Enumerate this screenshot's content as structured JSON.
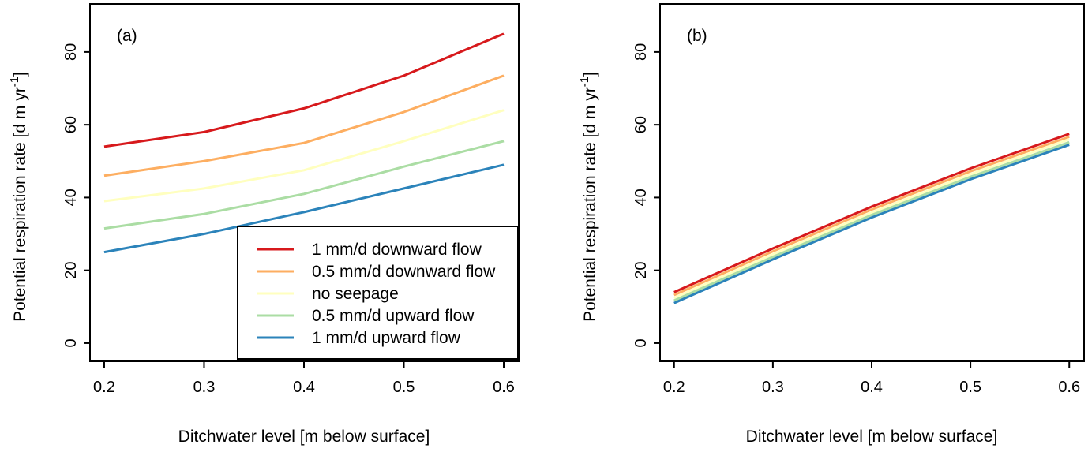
{
  "figure": {
    "background": "#ffffff",
    "axis_color": "#000000",
    "text_color": "#000000"
  },
  "chart_data": [
    {
      "type": "line",
      "panel_label": "(a)",
      "xlabel": "Ditchwater level [m below surface]",
      "ylabel": "Potential respiration rate [d m yr-1]",
      "ylabel_parts": {
        "pre": "Potential respiration rate [d m yr",
        "sup": "-1",
        "post": "]"
      },
      "x": [
        0.2,
        0.3,
        0.4,
        0.5,
        0.6
      ],
      "xtick_labels": [
        "0.2",
        "0.3",
        "0.4",
        "0.5",
        "0.6"
      ],
      "ytick_values": [
        0,
        20,
        40,
        60,
        80
      ],
      "ytick_labels": [
        "0",
        "20",
        "40",
        "60",
        "80"
      ],
      "xlim": [
        0.1858,
        0.615
      ],
      "ylim": [
        -5,
        93.2
      ],
      "grid": false,
      "series": [
        {
          "name": "1 mm/d downward flow",
          "color": "#d7191c",
          "values": [
            54,
            58,
            64.5,
            73.5,
            85
          ]
        },
        {
          "name": "0.5 mm/d downward flow",
          "color": "#fdae61",
          "values": [
            46,
            50,
            55,
            63.5,
            73.5
          ]
        },
        {
          "name": "no seepage",
          "color": "#ffffbf",
          "values": [
            39,
            42.5,
            47.5,
            55.5,
            64
          ]
        },
        {
          "name": "0.5 mm/d upward flow",
          "color": "#abdda4",
          "values": [
            31.5,
            35.5,
            41,
            48.5,
            55.5
          ]
        },
        {
          "name": "1 mm/d upward flow",
          "color": "#2b83ba",
          "values": [
            25,
            30,
            36,
            42.5,
            49
          ]
        }
      ],
      "legend": {
        "visible": true,
        "position": "inset-bottom-right"
      }
    },
    {
      "type": "line",
      "panel_label": "(b)",
      "xlabel": "Ditchwater level [m below surface]",
      "ylabel": "Potential respiration rate [d m yr-1]",
      "ylabel_parts": {
        "pre": "Potential respiration rate [d m yr",
        "sup": "-1",
        "post": "]"
      },
      "x": [
        0.2,
        0.3,
        0.4,
        0.5,
        0.6
      ],
      "xtick_labels": [
        "0.2",
        "0.3",
        "0.4",
        "0.5",
        "0.6"
      ],
      "ytick_values": [
        0,
        20,
        40,
        60,
        80
      ],
      "ytick_labels": [
        "0",
        "20",
        "40",
        "60",
        "80"
      ],
      "xlim": [
        0.1858,
        0.615
      ],
      "ylim": [
        -5,
        93.2
      ],
      "grid": false,
      "series": [
        {
          "name": "1 mm/d downward flow",
          "color": "#d7191c",
          "values": [
            14,
            26,
            37.5,
            48,
            57.5
          ]
        },
        {
          "name": "0.5 mm/d downward flow",
          "color": "#fdae61",
          "values": [
            13.2,
            25.2,
            36.7,
            47.2,
            56.7
          ]
        },
        {
          "name": "no seepage",
          "color": "#ffffbf",
          "values": [
            12.4,
            24.4,
            35.9,
            46.4,
            56
          ]
        },
        {
          "name": "0.5 mm/d upward flow",
          "color": "#abdda4",
          "values": [
            11.7,
            23.7,
            35.2,
            45.7,
            55.2
          ]
        },
        {
          "name": "1 mm/d upward flow",
          "color": "#2b83ba",
          "values": [
            11,
            23,
            34.5,
            45,
            54.5
          ]
        }
      ],
      "legend": {
        "visible": false,
        "position": "none"
      }
    }
  ]
}
